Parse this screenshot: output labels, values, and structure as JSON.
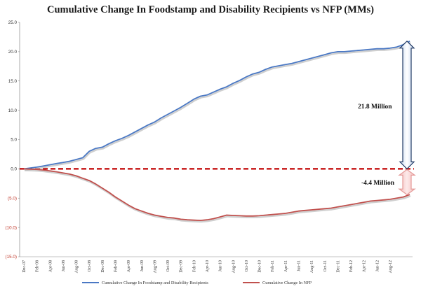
{
  "chart_data": {
    "type": "line",
    "title": "Cumulative Change In Foodstamp and Disability Recipients vs NFP (MMs)",
    "ylim": [
      -15,
      25
    ],
    "yticks": [
      {
        "value": 25,
        "label": "25.0"
      },
      {
        "value": 20,
        "label": "20.0"
      },
      {
        "value": 15,
        "label": "15.0"
      },
      {
        "value": 10,
        "label": "10.0"
      },
      {
        "value": 5,
        "label": "5.0"
      },
      {
        "value": 0,
        "label": "0.0"
      },
      {
        "value": -5,
        "label": "(5.0)"
      },
      {
        "value": -10,
        "label": "(10.0)"
      },
      {
        "value": -15,
        "label": "(15.0)"
      }
    ],
    "xtick_labels": [
      "Dec-07",
      "Feb-08",
      "Apr-08",
      "Jun-08",
      "Aug-08",
      "Oct-08",
      "Dec-08",
      "Feb-09",
      "Apr-09",
      "Jun-09",
      "Aug-09",
      "Oct-09",
      "Dec-09",
      "Feb-10",
      "Apr-10",
      "Jun-10",
      "Aug-10",
      "Oct-10",
      "Dec-10",
      "Feb-11",
      "Apr-11",
      "Jun-11",
      "Aug-11",
      "Oct-11",
      "Dec-11",
      "Feb-12",
      "Apr-12",
      "Jun-12",
      "Aug-12"
    ],
    "series": [
      {
        "name": "Cumulative Change In Foodstamp and Disability Recipients",
        "color": "#4a78c4",
        "values": [
          0.0,
          0.15,
          0.3,
          0.5,
          0.7,
          0.9,
          1.1,
          1.3,
          1.6,
          1.9,
          3.0,
          3.5,
          3.7,
          4.3,
          4.8,
          5.2,
          5.7,
          6.3,
          6.9,
          7.5,
          8.0,
          8.7,
          9.3,
          9.9,
          10.5,
          11.2,
          11.9,
          12.4,
          12.6,
          13.1,
          13.6,
          14.0,
          14.6,
          15.1,
          15.7,
          16.2,
          16.5,
          17.0,
          17.4,
          17.6,
          17.8,
          18.0,
          18.3,
          18.6,
          18.9,
          19.2,
          19.5,
          19.8,
          20.0,
          20.0,
          20.1,
          20.2,
          20.3,
          20.4,
          20.5,
          20.5,
          20.6,
          20.8,
          21.2,
          21.8
        ]
      },
      {
        "name": "Cumulative Change In NFP",
        "color": "#c0504d",
        "values": [
          0.0,
          -0.05,
          -0.1,
          -0.2,
          -0.35,
          -0.5,
          -0.7,
          -0.9,
          -1.2,
          -1.6,
          -2.0,
          -2.6,
          -3.3,
          -4.0,
          -4.8,
          -5.5,
          -6.2,
          -6.8,
          -7.2,
          -7.6,
          -7.9,
          -8.1,
          -8.3,
          -8.4,
          -8.6,
          -8.7,
          -8.75,
          -8.8,
          -8.7,
          -8.5,
          -8.2,
          -7.9,
          -7.95,
          -8.0,
          -8.05,
          -8.05,
          -8.0,
          -7.9,
          -7.8,
          -7.7,
          -7.6,
          -7.4,
          -7.2,
          -7.1,
          -7.0,
          -6.9,
          -6.8,
          -6.7,
          -6.5,
          -6.3,
          -6.1,
          -5.9,
          -5.7,
          -5.5,
          -5.4,
          -5.3,
          -5.2,
          -5.0,
          -4.8,
          -4.4
        ]
      }
    ],
    "annotations": {
      "gap_top_label": "21.8 Million",
      "gap_bottom_label": "-4.4 Million"
    },
    "legend_placement": "bottom",
    "grid": false
  }
}
